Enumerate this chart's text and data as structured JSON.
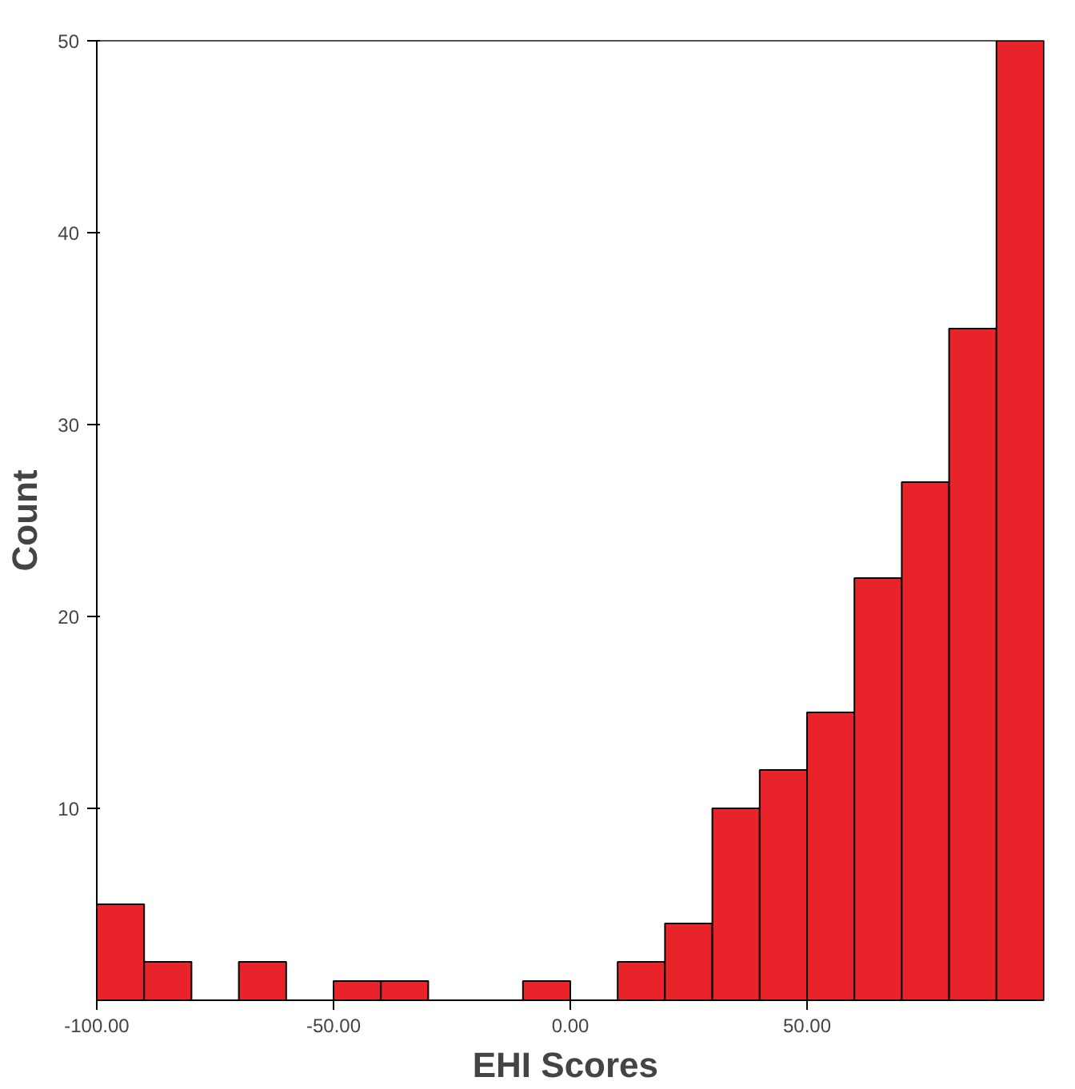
{
  "chart_data": {
    "type": "histogram",
    "xlabel": "EHI  Scores",
    "ylabel": "Count",
    "bins": [
      -100,
      -90,
      -80,
      -70,
      -60,
      -50,
      -40,
      -30,
      -20,
      -10,
      0,
      10,
      20,
      30,
      40,
      50,
      60,
      70,
      80,
      90,
      100
    ],
    "values": [
      5,
      2,
      0,
      2,
      0,
      1,
      1,
      0,
      0,
      1,
      0,
      2,
      4,
      10,
      12,
      15,
      22,
      27,
      35,
      50
    ],
    "color": "#e8242a",
    "xlim": [
      -100,
      100
    ],
    "ylim": [
      0,
      50
    ],
    "xticks": [
      {
        "value": -100,
        "label": "-100.00"
      },
      {
        "value": -50,
        "label": "-50.00"
      },
      {
        "value": 0,
        "label": "0.00"
      },
      {
        "value": 50,
        "label": "50.00"
      }
    ],
    "yticks": [
      10,
      20,
      30,
      40,
      50
    ],
    "grid": false
  }
}
